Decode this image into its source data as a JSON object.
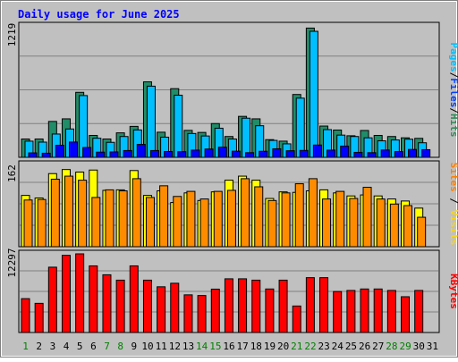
{
  "chart_data": {
    "type": "bar",
    "title": "Daily usage for June 2025",
    "categories": [
      "1",
      "2",
      "3",
      "4",
      "5",
      "6",
      "7",
      "8",
      "9",
      "10",
      "11",
      "12",
      "13",
      "14",
      "15",
      "16",
      "17",
      "18",
      "19",
      "20",
      "21",
      "22",
      "23",
      "24",
      "25",
      "26",
      "27",
      "28",
      "29",
      "30",
      "31"
    ],
    "weekend_days": [
      1,
      7,
      8,
      14,
      15,
      21,
      22,
      28,
      29
    ],
    "panels": [
      {
        "id": "hits-files-pages",
        "ymax_label": "1219",
        "ymax": 1219,
        "ylabel_parts": [
          {
            "text": "Pages",
            "color": "#00c0ff"
          },
          {
            "text": "/",
            "color": "#000000"
          },
          {
            "text": "Files",
            "color": "#0040ff"
          },
          {
            "text": "/",
            "color": "#000000"
          },
          {
            "text": "Hits",
            "color": "#2e8b57"
          }
        ],
        "series": [
          {
            "name": "Hits",
            "color": "#218c68",
            "values": [
              170,
              170,
              333,
              357,
              603,
              203,
              170,
              227,
              287,
              700,
              233,
              637,
              250,
              231,
              313,
              193,
              380,
              357,
              164,
              150,
              583,
              1199,
              290,
              253,
              200,
              249,
              203,
              193,
              181,
              176,
              0
            ]
          },
          {
            "name": "Files",
            "color": "#00bfff",
            "values": [
              150,
              141,
              216,
              263,
              573,
              177,
              139,
              193,
              254,
              660,
              187,
              576,
              221,
              198,
              270,
              170,
              363,
              293,
              157,
              125,
              549,
              1169,
              257,
              206,
              193,
              181,
              153,
              161,
              168,
              135,
              0
            ]
          },
          {
            "name": "Pages",
            "color": "#0000ff",
            "values": [
              41,
              38,
              112,
              142,
              91,
              48,
              50,
              63,
              120,
              63,
              54,
              52,
              67,
              77,
              94,
              57,
              43,
              56,
              79,
              61,
              64,
              114,
              67,
              104,
              46,
              43,
              68,
              53,
              73,
              71,
              0
            ]
          }
        ]
      },
      {
        "id": "visits-sites",
        "ymax_label": "162",
        "ymax": 162,
        "ylabel_parts": [
          {
            "text": "Sites",
            "color": "#ff8000"
          },
          {
            "text": " / ",
            "color": "#000000"
          },
          {
            "text": "Visits",
            "color": "#ffd700"
          }
        ],
        "series": [
          {
            "name": "Visits",
            "color": "#ffff00",
            "values": [
              101,
              96,
              144,
              152,
              147,
              151,
              111,
              112,
              150,
              101,
              110,
              87,
              106,
              91,
              108,
              131,
              139,
              131,
              95,
              108,
              107,
              110,
              112,
              106,
              100,
              102,
              100,
              94,
              90,
              76,
              0
            ]
          },
          {
            "name": "Sites",
            "color": "#ff8c00",
            "values": [
              92,
              93,
              133,
              139,
              131,
              97,
              112,
              110,
              134,
              97,
              120,
              99,
              109,
              94,
              109,
              111,
              134,
              118,
              91,
              106,
              124,
              134,
              94,
              109,
              95,
              117,
              94,
              84,
              81,
              58,
              0
            ]
          }
        ]
      },
      {
        "id": "kbytes",
        "ymax_label": "12297",
        "ymax": 12297,
        "ylabel_parts": [
          {
            "text": "KBytes",
            "color": "#ff0000"
          }
        ],
        "series": [
          {
            "name": "KBytes",
            "color": "#ff0000",
            "values": [
              5294,
              4561,
              10212,
              12065,
              12297,
              10416,
              9026,
              8185,
              10417,
              8184,
              7150,
              7700,
              5889,
              5779,
              6779,
              8396,
              8396,
              8185,
              6805,
              8185,
              4143,
              8573,
              8573,
              6407,
              6573,
              6805,
              6805,
              6573,
              5593,
              6573,
              0
            ]
          }
        ]
      }
    ],
    "colors": {
      "page_bg": "#ffffff",
      "frame_bg": "#c0c0c0",
      "plot_bg": "#c0c0c0",
      "title_color": "#0000ff",
      "weekday_tick": "#0000ff",
      "weekend_tick": "#008000",
      "grid": "#808080"
    }
  }
}
